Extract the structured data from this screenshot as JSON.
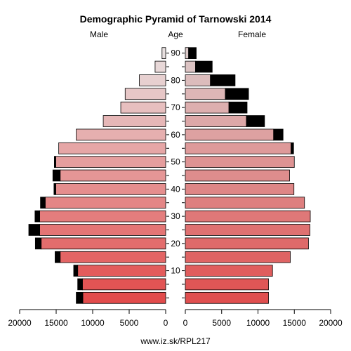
{
  "chart_data": {
    "type": "bar",
    "title": "Demographic Pyramid of Tarnowski 2014",
    "left_label": "Male",
    "center_label": "Age",
    "right_label": "Female",
    "footer": "www.iz.sk/RPL217",
    "xlim": [
      0,
      20000
    ],
    "x_ticks": [
      {
        "value": 20000,
        "label": "20000"
      },
      {
        "value": 15000,
        "label": "15000"
      },
      {
        "value": 10000,
        "label": "10000"
      },
      {
        "value": 5000,
        "label": "5000"
      },
      {
        "value": 0,
        "label": "0"
      }
    ],
    "age_ticks": [
      {
        "group": 2,
        "label": "10"
      },
      {
        "group": 4,
        "label": "20"
      },
      {
        "group": 6,
        "label": "30"
      },
      {
        "group": 8,
        "label": "40"
      },
      {
        "group": 10,
        "label": "50"
      },
      {
        "group": 12,
        "label": "60"
      },
      {
        "group": 14,
        "label": "70"
      },
      {
        "group": 16,
        "label": "80"
      },
      {
        "group": 18,
        "label": "90"
      }
    ],
    "age_groups": [
      "0-4",
      "5-9",
      "10-14",
      "15-19",
      "20-24",
      "25-29",
      "30-34",
      "35-39",
      "40-44",
      "45-49",
      "50-54",
      "55-59",
      "60-64",
      "65-69",
      "70-74",
      "75-79",
      "80-84",
      "85-89",
      "90+"
    ],
    "series": [
      {
        "name": "Male",
        "values": [
          11350,
          11400,
          12050,
          14450,
          17050,
          17250,
          17250,
          16500,
          15050,
          14450,
          15050,
          14650,
          12250,
          8550,
          6150,
          5550,
          3600,
          1450,
          500
        ],
        "surplus": [
          900,
          650,
          550,
          700,
          800,
          1500,
          650,
          650,
          250,
          1000,
          200,
          0,
          0,
          0,
          0,
          0,
          0,
          0,
          0
        ]
      },
      {
        "name": "Female",
        "values": [
          11450,
          11450,
          12000,
          14450,
          16950,
          17150,
          17200,
          16400,
          14950,
          14350,
          15000,
          14550,
          12150,
          8400,
          6000,
          5500,
          3450,
          1400,
          450
        ],
        "surplus": [
          0,
          0,
          0,
          0,
          0,
          0,
          0,
          0,
          0,
          0,
          0,
          350,
          1300,
          2500,
          2500,
          3200,
          3400,
          2300,
          1050
        ]
      }
    ],
    "surplus_color": "#000000",
    "colors": {
      "male_gradient": [
        "#e24c4c",
        "#e8e0e0"
      ],
      "female_gradient": [
        "#e04f4f",
        "#dccaca"
      ]
    },
    "grid": false
  }
}
